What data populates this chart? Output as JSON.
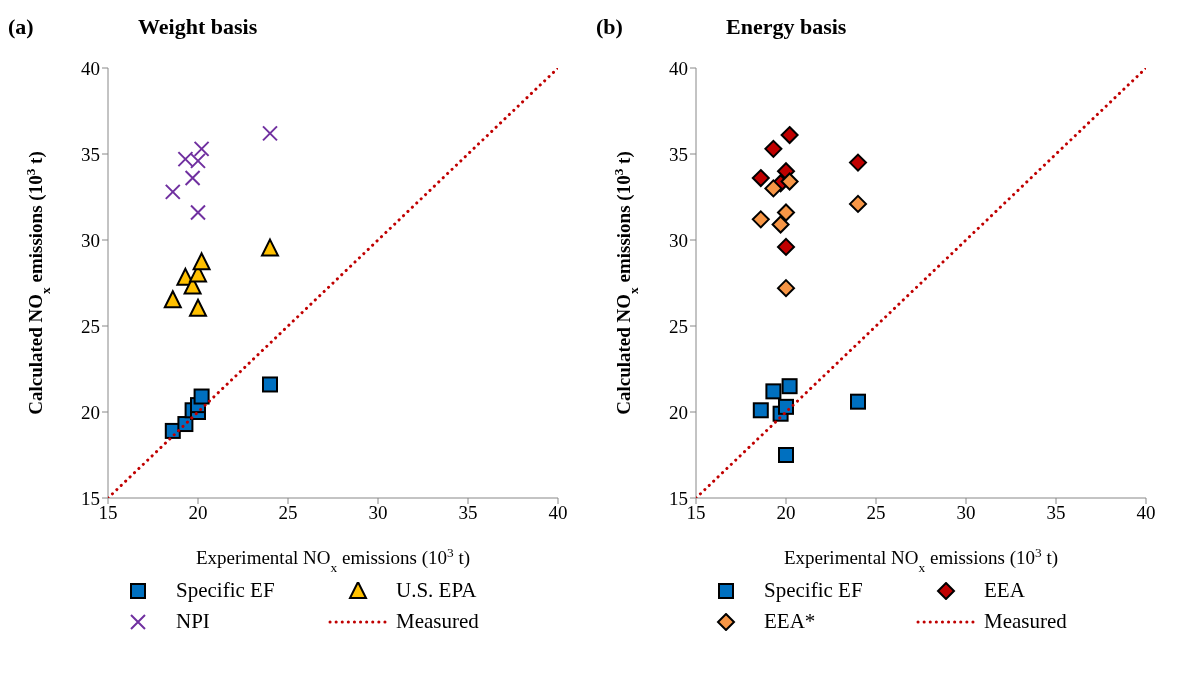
{
  "chart_data": [
    {
      "type": "scatter",
      "title": "Weight basis",
      "annotations": [
        "(a)"
      ],
      "xlabel": "Experimental NO$_{x}$ emissions (10$^{3}$ t)",
      "ylabel": "Calculated NO$_{x}$ emissions (10$^{3}$ t)",
      "xlim": [
        15,
        40
      ],
      "ylim": [
        15,
        40
      ],
      "xticks": [
        15,
        20,
        25,
        30,
        35,
        40
      ],
      "yticks": [
        15,
        20,
        25,
        30,
        35,
        40
      ],
      "legend": "bottom",
      "series": [
        {
          "name": "Specific EF",
          "color": "#0070c0",
          "marker": "square",
          "x": [
            18.6,
            19.3,
            19.7,
            20.0,
            20.0,
            20.2,
            24.0
          ],
          "values": [
            18.9,
            19.3,
            20.1,
            20.0,
            20.4,
            20.9,
            21.6
          ]
        },
        {
          "name": "U.S. EPA",
          "color": "#ffc000",
          "marker": "triangle",
          "x": [
            18.6,
            19.3,
            19.7,
            20.0,
            20.0,
            20.2,
            24.0
          ],
          "values": [
            26.5,
            27.8,
            27.3,
            26.0,
            28.0,
            28.7,
            29.5
          ]
        },
        {
          "name": "NPI",
          "color": "#7030a0",
          "marker": "cross",
          "x": [
            18.6,
            19.3,
            19.7,
            20.0,
            20.0,
            20.2,
            24.0
          ],
          "values": [
            32.8,
            34.7,
            33.6,
            31.6,
            34.6,
            35.3,
            36.2
          ]
        },
        {
          "name": "Measured",
          "type": "line",
          "color": "#c00000",
          "marker": "none",
          "line_style": "dotted",
          "x": [
            15,
            40
          ],
          "values": [
            15,
            40
          ]
        }
      ]
    },
    {
      "type": "scatter",
      "title": "Energy basis",
      "annotations": [
        "(b)"
      ],
      "xlabel": "Experimental NO$_{x}$ emissions (10$^{3}$ t)",
      "ylabel": "Calculated NO$_{x}$ emissions (10$^{3}$ t)",
      "xlim": [
        15,
        40
      ],
      "ylim": [
        15,
        40
      ],
      "xticks": [
        15,
        20,
        25,
        30,
        35,
        40
      ],
      "yticks": [
        15,
        20,
        25,
        30,
        35,
        40
      ],
      "legend": "bottom",
      "series": [
        {
          "name": "Specific EF",
          "color": "#0070c0",
          "marker": "square",
          "x": [
            18.6,
            19.3,
            19.7,
            20.0,
            20.0,
            20.2,
            24.0
          ],
          "values": [
            20.1,
            21.2,
            19.9,
            17.5,
            20.3,
            21.5,
            20.6
          ]
        },
        {
          "name": "EEA",
          "color": "#c00000",
          "marker": "diamond",
          "x": [
            18.6,
            19.3,
            19.7,
            20.0,
            20.0,
            20.2,
            24.0
          ],
          "values": [
            33.6,
            35.3,
            33.3,
            29.6,
            34.0,
            36.1,
            34.5
          ]
        },
        {
          "name": "EEA*",
          "color": "#f79646",
          "marker": "diamond",
          "x": [
            18.6,
            19.3,
            19.7,
            20.0,
            20.0,
            20.2,
            24.0
          ],
          "values": [
            31.2,
            33.0,
            30.9,
            27.2,
            31.6,
            33.4,
            32.1
          ]
        },
        {
          "name": "Measured",
          "type": "line",
          "color": "#c00000",
          "marker": "none",
          "line_style": "dotted",
          "x": [
            15,
            40
          ],
          "values": [
            15,
            40
          ]
        }
      ]
    }
  ]
}
